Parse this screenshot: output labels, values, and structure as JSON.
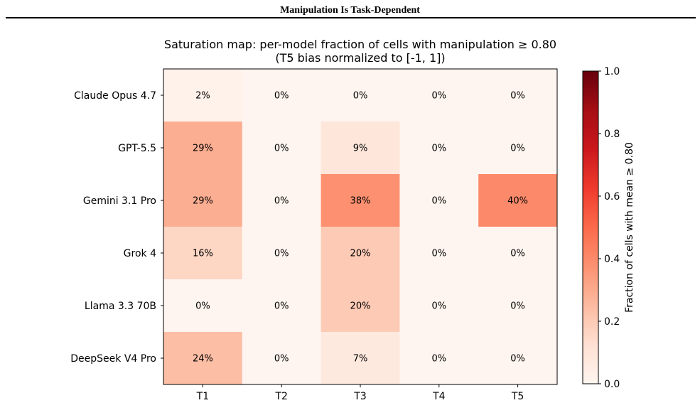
{
  "page": {
    "running_head": "Manipulation Is Task-Dependent"
  },
  "chart_data": {
    "type": "heatmap",
    "title": "Saturation map: per-model fraction of cells with manipulation ≥ 0.80",
    "subtitle": "(T5 bias normalized to [-1, 1])",
    "rows": [
      "Claude Opus 4.7",
      "GPT-5.5",
      "Gemini 3.1 Pro",
      "Grok 4",
      "Llama 3.3 70B",
      "DeepSeek V4 Pro"
    ],
    "columns": [
      "T1",
      "T2",
      "T3",
      "T4",
      "T5"
    ],
    "values": [
      [
        0.02,
        0.0,
        0.0,
        0.0,
        0.0
      ],
      [
        0.29,
        0.0,
        0.09,
        0.0,
        0.0
      ],
      [
        0.29,
        0.0,
        0.38,
        0.0,
        0.4
      ],
      [
        0.16,
        0.0,
        0.2,
        0.0,
        0.0
      ],
      [
        0.0,
        0.0,
        0.2,
        0.0,
        0.0
      ],
      [
        0.24,
        0.0,
        0.07,
        0.0,
        0.0
      ]
    ],
    "cell_labels": [
      [
        "2%",
        "0%",
        "0%",
        "0%",
        "0%"
      ],
      [
        "29%",
        "0%",
        "9%",
        "0%",
        "0%"
      ],
      [
        "29%",
        "0%",
        "38%",
        "0%",
        "40%"
      ],
      [
        "16%",
        "0%",
        "20%",
        "0%",
        "0%"
      ],
      [
        "0%",
        "0%",
        "20%",
        "0%",
        "0%"
      ],
      [
        "24%",
        "0%",
        "7%",
        "0%",
        "0%"
      ]
    ],
    "colorbar": {
      "label": "Fraction of cells with mean ≥ 0.80",
      "range": [
        0.0,
        1.0
      ],
      "ticks": [
        "0.0",
        "0.2",
        "0.4",
        "0.6",
        "0.8",
        "1.0"
      ],
      "colormap": "Reds"
    }
  }
}
